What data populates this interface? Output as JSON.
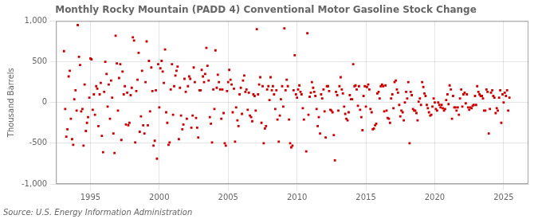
{
  "chart_data": {
    "type": "scatter",
    "title": "Monthly Rocky Mountain (PADD 4) Conventional Motor Gasoline Stock Change",
    "ylabel": "Thousand Barrels",
    "annotation": "Source: U.S. Energy Information Administration",
    "color": "#cc0000",
    "marker": "square",
    "grid": true,
    "xlim": [
      1992.5,
      2026.8
    ],
    "xticks": [
      1995,
      2000,
      2005,
      2010,
      2015,
      2020,
      2025
    ],
    "ylim": [
      -1000,
      1000
    ],
    "yticks": [
      {
        "value": -1000,
        "label": "-1,000"
      },
      -500,
      0,
      500,
      {
        "value": 1000,
        "label": "1,000"
      }
    ],
    "x": [
      1993.08,
      1993.17,
      1993.25,
      1993.33,
      1993.42,
      1993.5,
      1993.58,
      1993.67,
      1993.75,
      1993.83,
      1993.92,
      1994.0,
      1994.08,
      1994.17,
      1994.25,
      1994.33,
      1994.42,
      1994.5,
      1994.58,
      1994.67,
      1994.75,
      1994.83,
      1994.92,
      1995.0,
      1995.08,
      1995.17,
      1995.25,
      1995.33,
      1995.42,
      1995.5,
      1995.58,
      1995.67,
      1995.75,
      1995.83,
      1995.92,
      1996.0,
      1996.08,
      1996.17,
      1996.25,
      1996.33,
      1996.42,
      1996.5,
      1996.58,
      1996.67,
      1996.75,
      1996.83,
      1996.92,
      1997.0,
      1997.08,
      1997.17,
      1997.25,
      1997.33,
      1997.42,
      1997.5,
      1997.58,
      1997.67,
      1997.75,
      1997.83,
      1997.92,
      1998.0,
      1998.08,
      1998.17,
      1998.25,
      1998.33,
      1998.42,
      1998.5,
      1998.58,
      1998.67,
      1998.75,
      1998.83,
      1998.92,
      1999.0,
      1999.08,
      1999.17,
      1999.25,
      1999.33,
      1999.42,
      1999.5,
      1999.58,
      1999.67,
      1999.75,
      1999.83,
      1999.92,
      2000.0,
      2000.08,
      2000.17,
      2000.25,
      2000.33,
      2000.42,
      2000.5,
      2000.58,
      2000.67,
      2000.75,
      2000.83,
      2000.92,
      2001.0,
      2001.08,
      2001.17,
      2001.25,
      2001.33,
      2001.42,
      2001.5,
      2001.58,
      2001.67,
      2001.75,
      2001.83,
      2001.92,
      2002.0,
      2002.08,
      2002.17,
      2002.25,
      2002.33,
      2002.42,
      2002.5,
      2002.58,
      2002.67,
      2002.75,
      2002.83,
      2002.92,
      2003.0,
      2003.08,
      2003.17,
      2003.25,
      2003.33,
      2003.42,
      2003.5,
      2003.58,
      2003.67,
      2003.75,
      2003.83,
      2003.92,
      2004.0,
      2004.08,
      2004.17,
      2004.25,
      2004.33,
      2004.42,
      2004.5,
      2004.58,
      2004.67,
      2004.75,
      2004.83,
      2004.92,
      2005.0,
      2005.08,
      2005.17,
      2005.25,
      2005.33,
      2005.42,
      2005.5,
      2005.58,
      2005.67,
      2005.75,
      2005.83,
      2005.92,
      2006.0,
      2006.08,
      2006.17,
      2006.25,
      2006.33,
      2006.42,
      2006.5,
      2006.58,
      2006.67,
      2006.75,
      2006.83,
      2006.92,
      2007.0,
      2007.08,
      2007.17,
      2007.25,
      2007.33,
      2007.42,
      2007.5,
      2007.58,
      2007.67,
      2007.75,
      2007.83,
      2007.92,
      2008.0,
      2008.08,
      2008.17,
      2008.25,
      2008.33,
      2008.42,
      2008.5,
      2008.58,
      2008.67,
      2008.75,
      2008.83,
      2008.92,
      2009.0,
      2009.08,
      2009.17,
      2009.25,
      2009.33,
      2009.42,
      2009.5,
      2009.58,
      2009.67,
      2009.75,
      2009.83,
      2009.92,
      2010.0,
      2010.08,
      2010.17,
      2010.25,
      2010.33,
      2010.42,
      2010.5,
      2010.67,
      2010.75,
      2010.83,
      2010.92,
      2011.0,
      2011.08,
      2011.17,
      2011.25,
      2011.33,
      2011.42,
      2011.5,
      2011.58,
      2011.67,
      2011.75,
      2011.83,
      2011.92,
      2012.0,
      2012.08,
      2012.17,
      2012.25,
      2012.33,
      2012.42,
      2012.5,
      2012.58,
      2012.67,
      2012.75,
      2012.83,
      2012.92,
      2013.0,
      2013.08,
      2013.17,
      2013.25,
      2013.33,
      2013.42,
      2013.5,
      2013.58,
      2013.67,
      2013.75,
      2013.83,
      2013.92,
      2014.0,
      2014.08,
      2014.17,
      2014.25,
      2014.33,
      2014.42,
      2014.5,
      2014.58,
      2014.67,
      2014.75,
      2014.83,
      2014.92,
      2015.0,
      2015.08,
      2015.17,
      2015.25,
      2015.33,
      2015.42,
      2015.5,
      2015.58,
      2015.67,
      2015.75,
      2015.83,
      2015.92,
      2016.0,
      2016.08,
      2016.17,
      2016.25,
      2016.33,
      2016.42,
      2016.5,
      2016.58,
      2016.67,
      2016.75,
      2016.83,
      2016.92,
      2017.0,
      2017.08,
      2017.17,
      2017.25,
      2017.33,
      2017.42,
      2017.5,
      2017.58,
      2017.67,
      2017.75,
      2017.83,
      2017.92,
      2018.0,
      2018.08,
      2018.17,
      2018.25,
      2018.33,
      2018.42,
      2018.5,
      2018.58,
      2018.67,
      2018.75,
      2018.83,
      2018.92,
      2019.0,
      2019.08,
      2019.17,
      2019.25,
      2019.33,
      2019.42,
      2019.5,
      2019.58,
      2019.67,
      2019.75,
      2019.83,
      2019.92,
      2020.0,
      2020.08,
      2020.17,
      2020.25,
      2020.33,
      2020.42,
      2020.5,
      2020.58,
      2020.67,
      2020.75,
      2020.83,
      2020.92,
      2021.0,
      2021.08,
      2021.17,
      2021.25,
      2021.33,
      2021.42,
      2021.5,
      2021.58,
      2021.67,
      2021.75,
      2021.83,
      2021.92,
      2022.0,
      2022.08,
      2022.17,
      2022.25,
      2022.33,
      2022.42,
      2022.5,
      2022.58,
      2022.67,
      2022.75,
      2022.83,
      2022.92,
      2023.0,
      2023.08,
      2023.17,
      2023.25,
      2023.33,
      2023.42,
      2023.5,
      2023.58,
      2023.67,
      2023.75,
      2023.83,
      2023.92,
      2024.0,
      2024.08,
      2024.17,
      2024.25,
      2024.33,
      2024.42,
      2024.5,
      2024.58,
      2024.67,
      2024.75,
      2024.83,
      2024.92,
      2025.0,
      2025.08,
      2025.17,
      2025.25,
      2025.33,
      2025.42
    ],
    "values": [
      630,
      -80,
      -420,
      -330,
      320,
      390,
      -200,
      -450,
      -520,
      40,
      150,
      -100,
      950,
      560,
      460,
      -110,
      -80,
      -530,
      220,
      -350,
      -250,
      -180,
      60,
      540,
      530,
      -90,
      100,
      -150,
      200,
      170,
      -290,
      100,
      240,
      -410,
      -610,
      130,
      500,
      350,
      -50,
      220,
      -200,
      270,
      60,
      -380,
      -620,
      820,
      480,
      -100,
      300,
      470,
      -460,
      380,
      100,
      200,
      -270,
      120,
      -280,
      -250,
      90,
      180,
      800,
      760,
      -490,
      140,
      280,
      610,
      -360,
      -170,
      390,
      -280,
      -380,
      250,
      750,
      -280,
      510,
      -110,
      430,
      140,
      -530,
      -470,
      150,
      -690,
      470,
      -60,
      420,
      510,
      380,
      240,
      650,
      -120,
      -250,
      -520,
      -490,
      160,
      470,
      -150,
      200,
      330,
      390,
      440,
      -450,
      180,
      -160,
      -330,
      -270,
      290,
      130,
      -200,
      200,
      320,
      290,
      -310,
      -160,
      430,
      250,
      -190,
      -310,
      -430,
      150,
      150,
      400,
      320,
      250,
      350,
      670,
      450,
      270,
      -180,
      -260,
      -490,
      160,
      -80,
      640,
      180,
      340,
      250,
      160,
      -200,
      160,
      -130,
      -500,
      -530,
      140,
      250,
      400,
      280,
      220,
      -120,
      170,
      -480,
      -60,
      -220,
      -290,
      100,
      180,
      -140,
      270,
      330,
      130,
      160,
      -90,
      120,
      -160,
      -180,
      -230,
      100,
      80,
      -100,
      900,
      100,
      220,
      310,
      -250,
      200,
      -500,
      -320,
      -290,
      160,
      200,
      30,
      310,
      150,
      200,
      100,
      -80,
      150,
      -210,
      -480,
      -160,
      40,
      200,
      -50,
      910,
      150,
      280,
      200,
      -210,
      -500,
      -550,
      -530,
      150,
      580,
      100,
      60,
      160,
      210,
      130,
      100,
      -70,
      -210,
      -600,
      850,
      -150,
      70,
      120,
      250,
      180,
      130,
      80,
      -80,
      -290,
      -180,
      -380,
      100,
      50,
      160,
      -110,
      -430,
      200,
      200,
      140,
      -90,
      -100,
      -120,
      -400,
      -710,
      130,
      90,
      -100,
      200,
      310,
      160,
      110,
      -50,
      -140,
      -200,
      -220,
      -120,
      90,
      40,
      40,
      470,
      200,
      210,
      160,
      -40,
      200,
      -90,
      -180,
      -340,
      80,
      200,
      -50,
      190,
      220,
      160,
      -80,
      -120,
      -330,
      -320,
      -280,
      -260,
      110,
      130,
      50,
      200,
      220,
      200,
      -110,
      210,
      -100,
      -190,
      -200,
      -250,
      50,
      100,
      -70,
      250,
      270,
      160,
      120,
      -30,
      -170,
      -100,
      -120,
      -220,
      0,
      130,
      50,
      250,
      -500,
      130,
      90,
      -80,
      -100,
      -100,
      -130,
      -220,
      10,
      50,
      -30,
      250,
      190,
      110,
      80,
      -30,
      -70,
      -120,
      -160,
      -150,
      -50,
      50,
      0,
      -80,
      -100,
      0,
      -30,
      -60,
      -30,
      -70,
      -100,
      -80,
      30,
      100,
      -20,
      210,
      160,
      -200,
      80,
      -60,
      -60,
      -100,
      -60,
      -150,
      50,
      160,
      -50,
      100,
      120,
      -10,
      100,
      -60,
      -90,
      -60,
      -70,
      -40,
      -30,
      80,
      -30,
      200,
      130,
      100,
      80,
      80,
      50,
      -100,
      -100,
      160,
      130,
      -380,
      -80,
      120,
      150,
      80,
      60,
      -130,
      -70,
      -100,
      60,
      150,
      -250,
      100,
      0,
      120,
      80,
      150,
      -100,
      60
    ]
  }
}
